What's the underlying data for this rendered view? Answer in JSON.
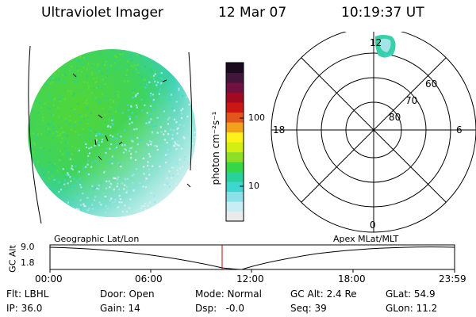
{
  "header": {
    "instrument": "Ultraviolet Imager",
    "date": "12 Mar 07",
    "time": "10:19:37 UT"
  },
  "colorbar": {
    "label": "photon cm⁻²s⁻¹",
    "ticks": [
      "100",
      "10"
    ],
    "colors": [
      "#eaeaea",
      "#c8eef4",
      "#8ee0e8",
      "#3ed6d0",
      "#28d29a",
      "#36d646",
      "#8ede28",
      "#d2ee12",
      "#fff21a",
      "#f2a21a",
      "#e2561a",
      "#cc1614",
      "#a20a22",
      "#721040",
      "#42163c",
      "#1a0a1e"
    ]
  },
  "polar": {
    "mlt_labels": {
      "top": "12",
      "left": "18",
      "right": "6",
      "bottom": "0"
    },
    "lat_labels": [
      "60",
      "70",
      "80"
    ]
  },
  "timeline": {
    "left_label": "Geographic Lat/Lon",
    "right_label": "Apex MLat/MLT",
    "axis_label": "GC Alt",
    "y_max": "9.0",
    "y_min": "1.8",
    "x_ticks": [
      "00:00",
      "06:00",
      "12:00",
      "18:00",
      "23:59"
    ]
  },
  "status": {
    "flt": "Flt: LBHL",
    "ip": "IP: 36.0",
    "door": "Door: Open",
    "gain": "Gain: 14",
    "mode": "Mode: Normal",
    "dsp": "Dsp:   -0.0",
    "gcalt": "GC Alt: 2.4 Re",
    "seq": "Seq: 39",
    "glat": "GLat: 54.9",
    "glon": "GLon: 11.2"
  }
}
